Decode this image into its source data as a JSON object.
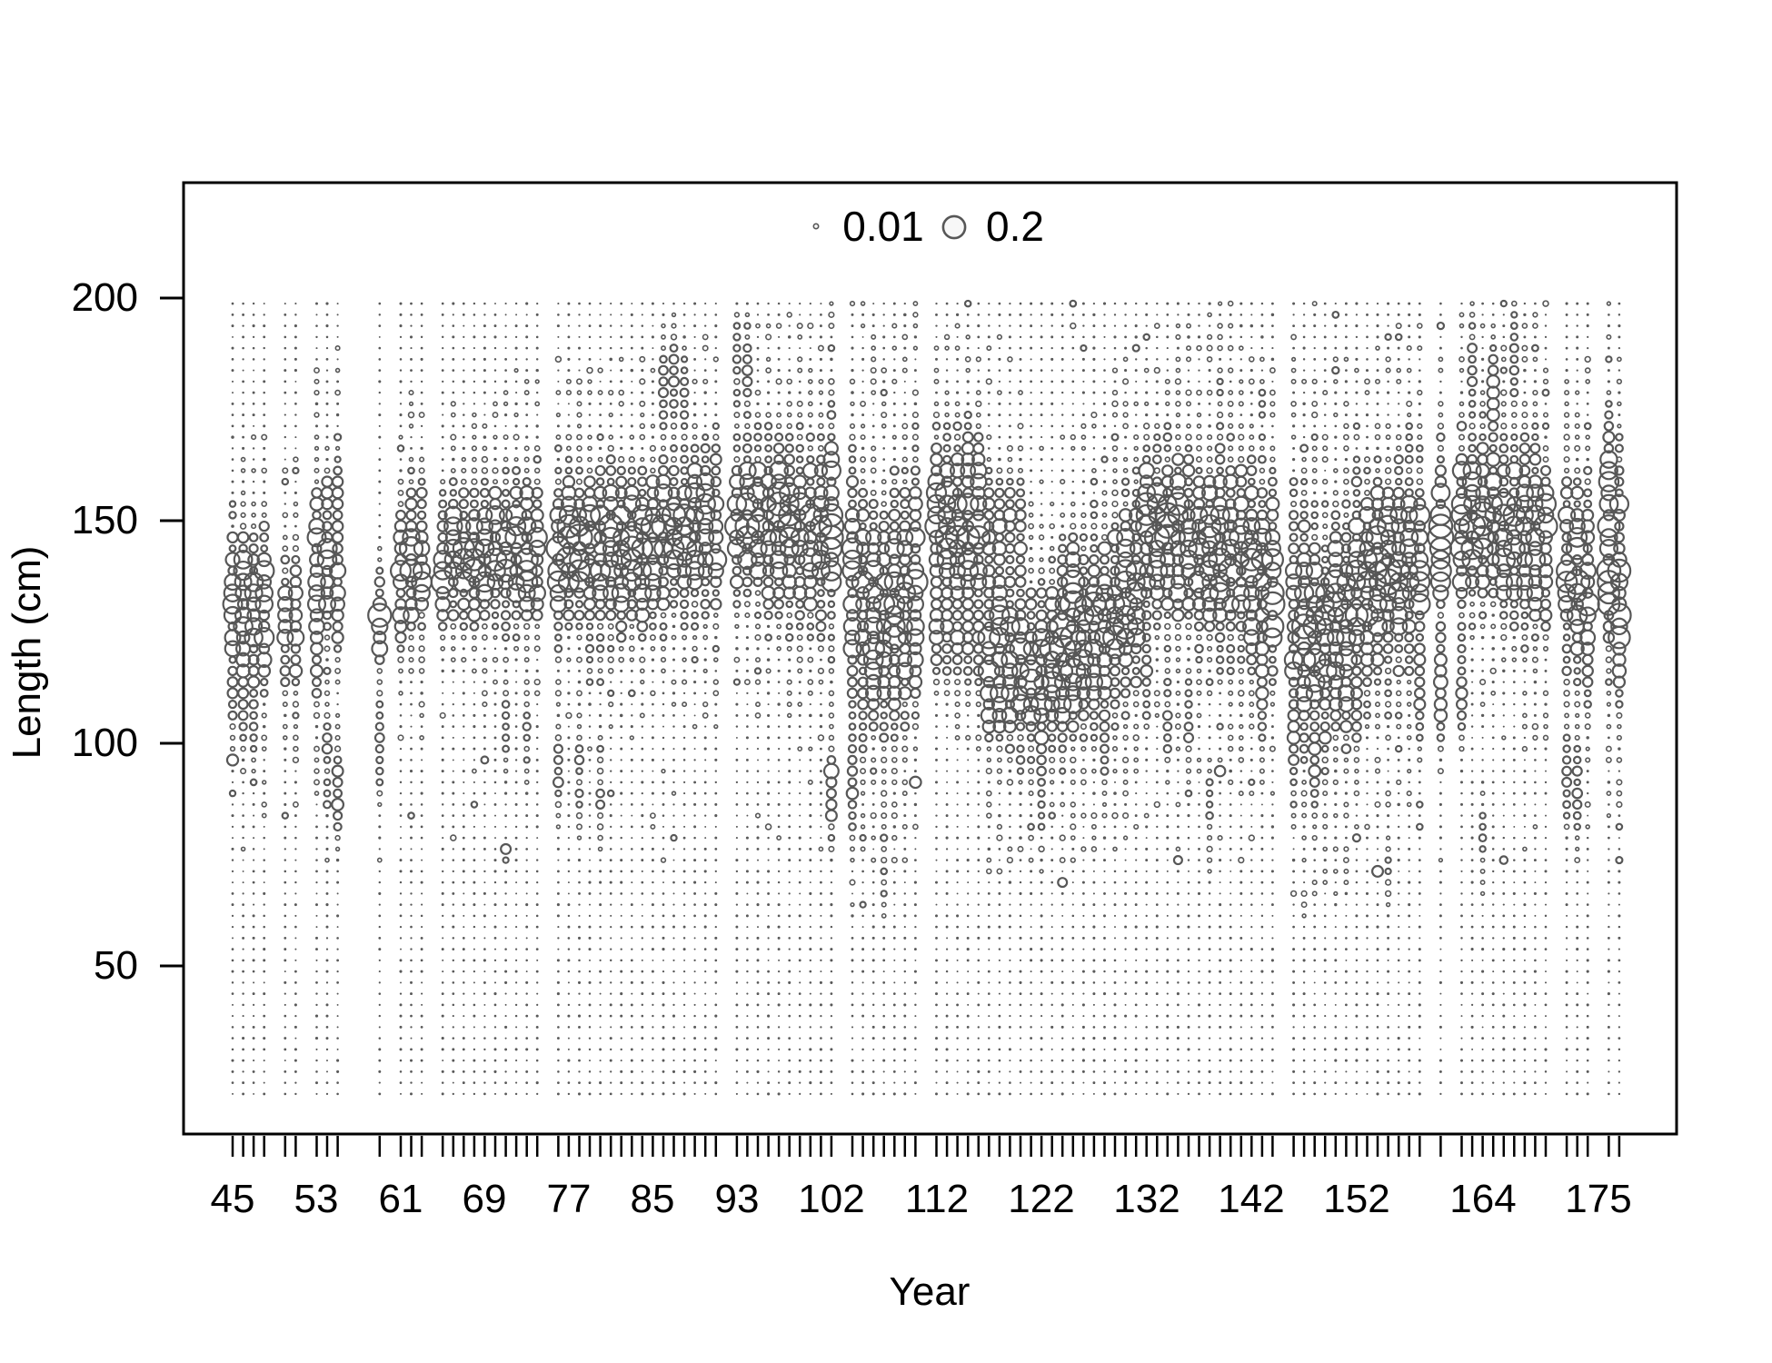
{
  "chart_data": {
    "type": "bubble",
    "title": "",
    "xlabel": "Year",
    "ylabel": "Length (cm)",
    "x_tick_years": [
      45,
      53,
      61,
      69,
      77,
      85,
      93,
      102,
      112,
      122,
      132,
      142,
      152,
      164,
      175
    ],
    "y_ticks": [
      200,
      150,
      100,
      50
    ],
    "axis_ranges": {
      "x_year_min": 45,
      "x_year_max": 177,
      "y_len_min": 12,
      "y_len_max": 226
    },
    "grid": "off",
    "legend_position": "top-center-inside",
    "legend": [
      {
        "value": 0.01,
        "label": "0.01"
      },
      {
        "value": 0.2,
        "label": "0.2"
      }
    ],
    "bubble_scale": {
      "radius_px_per_sqrt_proportion": 27,
      "max_radius_px": 14.2
    },
    "length_bins": {
      "top_cm": 198.75,
      "step_cm": 2.5,
      "count": 72
    },
    "columns_note": "each column = [year, mean_length_cm, sd_cm, peak_proportion, secondary_mode_cm, secondary_peak_proportion]",
    "columns": [
      [
        45,
        132,
        8,
        0.11,
        112,
        0.02
      ],
      [
        46,
        131,
        9,
        0.13,
        111,
        0.03
      ],
      [
        47,
        130,
        8,
        0.12,
        108,
        0.02
      ],
      [
        48,
        129,
        9,
        0.13,
        0,
        0
      ],
      [
        50,
        127,
        7,
        0.07,
        0,
        0
      ],
      [
        51,
        126,
        8,
        0.06,
        0,
        0
      ],
      [
        53,
        138,
        10,
        0.09,
        120,
        0.05
      ],
      [
        54,
        141,
        9,
        0.1,
        97,
        0.02
      ],
      [
        55,
        143,
        10,
        0.11,
        88,
        0.04
      ],
      [
        59,
        128,
        6,
        0.1,
        100,
        0.02
      ],
      [
        61,
        138,
        8,
        0.1,
        0,
        0
      ],
      [
        62,
        140,
        8,
        0.12,
        0,
        0
      ],
      [
        63,
        141,
        8,
        0.11,
        0,
        0
      ],
      [
        65,
        141,
        7,
        0.13,
        0,
        0
      ],
      [
        66,
        142,
        7,
        0.14,
        0,
        0
      ],
      [
        67,
        143,
        7,
        0.13,
        0,
        0
      ],
      [
        68,
        142,
        7,
        0.15,
        0,
        0
      ],
      [
        69,
        143,
        7,
        0.14,
        0,
        0
      ],
      [
        70,
        144,
        7,
        0.13,
        0,
        0
      ],
      [
        71,
        143,
        8,
        0.12,
        105,
        0.012
      ],
      [
        72,
        144,
        8,
        0.14,
        0,
        0
      ],
      [
        73,
        143,
        8,
        0.13,
        103,
        0.012
      ],
      [
        74,
        144,
        8,
        0.12,
        0,
        0
      ],
      [
        76,
        142,
        9,
        0.12,
        93,
        0.02
      ],
      [
        77,
        144,
        8,
        0.13,
        0,
        0
      ],
      [
        78,
        143,
        9,
        0.14,
        92,
        0.018
      ],
      [
        79,
        142,
        9,
        0.13,
        0,
        0
      ],
      [
        80,
        143,
        9,
        0.14,
        90,
        0.02
      ],
      [
        81,
        144,
        9,
        0.12,
        0,
        0
      ],
      [
        82,
        143,
        9,
        0.13,
        0,
        0
      ],
      [
        83,
        144,
        9,
        0.11,
        0,
        0
      ],
      [
        84,
        143,
        9,
        0.12,
        0,
        0
      ],
      [
        85,
        145,
        8,
        0.13,
        0,
        0
      ],
      [
        86,
        146,
        8,
        0.14,
        180,
        0.022
      ],
      [
        87,
        147,
        8,
        0.13,
        182,
        0.02
      ],
      [
        88,
        146,
        8,
        0.12,
        178,
        0.02
      ],
      [
        89,
        147,
        9,
        0.14,
        0,
        0
      ],
      [
        90,
        148,
        9,
        0.12,
        0,
        0
      ],
      [
        91,
        147,
        9,
        0.11,
        0,
        0
      ],
      [
        93,
        150,
        8,
        0.15,
        186,
        0.02
      ],
      [
        94,
        151,
        8,
        0.14,
        184,
        0.02
      ],
      [
        95,
        150,
        9,
        0.13,
        0,
        0
      ],
      [
        96,
        149,
        9,
        0.12,
        0,
        0
      ],
      [
        97,
        150,
        9,
        0.13,
        0,
        0
      ],
      [
        98,
        149,
        10,
        0.12,
        0,
        0
      ],
      [
        99,
        148,
        10,
        0.11,
        0,
        0
      ],
      [
        100,
        147,
        10,
        0.12,
        0,
        0
      ],
      [
        101,
        146,
        10,
        0.11,
        0,
        0
      ],
      [
        102,
        150,
        12,
        0.13,
        88,
        0.03
      ],
      [
        104,
        135,
        15,
        0.09,
        90,
        0.03
      ],
      [
        105,
        130,
        14,
        0.1,
        0,
        0
      ],
      [
        106,
        128,
        13,
        0.11,
        0,
        0
      ],
      [
        107,
        126,
        12,
        0.1,
        72,
        0.008
      ],
      [
        108,
        130,
        13,
        0.11,
        0,
        0
      ],
      [
        109,
        132,
        13,
        0.1,
        0,
        0
      ],
      [
        110,
        134,
        13,
        0.11,
        0,
        0
      ],
      [
        112,
        150,
        9,
        0.13,
        125,
        0.04
      ],
      [
        113,
        151,
        9,
        0.12,
        126,
        0.04
      ],
      [
        114,
        150,
        10,
        0.11,
        124,
        0.04
      ],
      [
        115,
        149,
        10,
        0.12,
        125,
        0.035
      ],
      [
        116,
        148,
        10,
        0.11,
        123,
        0.04
      ],
      [
        117,
        120,
        10,
        0.12,
        148,
        0.05
      ],
      [
        118,
        119,
        10,
        0.13,
        149,
        0.05
      ],
      [
        119,
        118,
        10,
        0.1,
        150,
        0.04
      ],
      [
        120,
        117,
        10,
        0.11,
        148,
        0.04
      ],
      [
        121,
        115,
        9,
        0.13,
        0,
        0
      ],
      [
        122,
        116,
        9,
        0.12,
        95,
        0.02
      ],
      [
        123,
        118,
        9,
        0.13,
        0,
        0
      ],
      [
        124,
        120,
        9,
        0.16,
        0,
        0
      ],
      [
        125,
        122,
        10,
        0.16,
        135,
        0.06
      ],
      [
        126,
        124,
        10,
        0.11,
        0,
        0
      ],
      [
        127,
        126,
        10,
        0.12,
        0,
        0
      ],
      [
        128,
        128,
        10,
        0.13,
        100,
        0.02
      ],
      [
        129,
        130,
        11,
        0.12,
        0,
        0
      ],
      [
        130,
        132,
        11,
        0.13,
        0,
        0
      ],
      [
        131,
        134,
        11,
        0.12,
        0,
        0
      ],
      [
        132,
        148,
        9,
        0.13,
        115,
        0.03
      ],
      [
        133,
        147,
        9,
        0.12,
        0,
        0
      ],
      [
        134,
        146,
        10,
        0.13,
        105,
        0.02
      ],
      [
        135,
        145,
        10,
        0.14,
        0,
        0
      ],
      [
        136,
        144,
        10,
        0.12,
        104,
        0.02
      ],
      [
        137,
        143,
        10,
        0.13,
        0,
        0
      ],
      [
        138,
        142,
        10,
        0.12,
        82,
        0.012
      ],
      [
        139,
        143,
        11,
        0.11,
        0,
        0
      ],
      [
        140,
        144,
        11,
        0.12,
        0,
        0
      ],
      [
        141,
        142,
        11,
        0.11,
        0,
        0
      ],
      [
        142,
        140,
        11,
        0.12,
        0,
        0
      ],
      [
        143,
        138,
        11,
        0.11,
        110,
        0.03
      ],
      [
        144,
        136,
        11,
        0.13,
        0,
        0
      ],
      [
        146,
        128,
        13,
        0.11,
        100,
        0.03
      ],
      [
        147,
        126,
        13,
        0.12,
        0,
        0
      ],
      [
        148,
        124,
        12,
        0.11,
        95,
        0.025
      ],
      [
        149,
        122,
        12,
        0.12,
        0,
        0
      ],
      [
        150,
        124,
        13,
        0.11,
        135,
        0.05
      ],
      [
        151,
        126,
        13,
        0.1,
        0,
        0
      ],
      [
        152,
        135,
        11,
        0.12,
        108,
        0.025
      ],
      [
        153,
        136,
        11,
        0.13,
        0,
        0
      ],
      [
        154,
        137,
        11,
        0.16,
        0,
        0
      ],
      [
        155,
        138,
        11,
        0.13,
        70,
        0.008
      ],
      [
        156,
        139,
        11,
        0.12,
        0,
        0
      ],
      [
        157,
        140,
        11,
        0.11,
        0,
        0
      ],
      [
        158,
        141,
        11,
        0.12,
        112,
        0.03
      ],
      [
        160,
        146,
        10,
        0.13,
        112,
        0.05
      ],
      [
        162,
        148,
        10,
        0.14,
        112,
        0.035
      ],
      [
        163,
        150,
        9,
        0.13,
        185,
        0.02
      ],
      [
        164,
        151,
        9,
        0.15,
        78,
        0.01
      ],
      [
        165,
        150,
        9,
        0.14,
        178,
        0.03
      ],
      [
        166,
        149,
        10,
        0.13,
        0,
        0
      ],
      [
        167,
        148,
        10,
        0.12,
        186,
        0.02
      ],
      [
        168,
        147,
        10,
        0.13,
        0,
        0
      ],
      [
        169,
        146,
        10,
        0.12,
        0,
        0
      ],
      [
        170,
        145,
        10,
        0.11,
        0,
        0
      ],
      [
        172,
        140,
        11,
        0.1,
        92,
        0.025
      ],
      [
        173,
        138,
        11,
        0.11,
        90,
        0.02
      ],
      [
        174,
        136,
        11,
        0.12,
        0,
        0
      ],
      [
        176,
        142,
        12,
        0.14,
        163,
        0.05
      ],
      [
        177,
        138,
        12,
        0.15,
        125,
        0.05
      ]
    ]
  },
  "style": {
    "background": "#ffffff",
    "frame_color": "#000000",
    "text_color": "#000000",
    "bubble_stroke": "#575757",
    "dot_fill": "#595959",
    "legend_circle_fill": "#f7f7f7"
  }
}
